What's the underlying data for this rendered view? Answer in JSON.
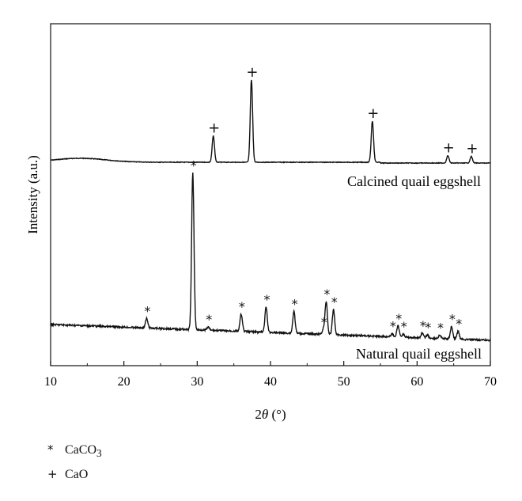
{
  "chart_data": {
    "type": "line",
    "xlabel_prefix": "2",
    "xlabel_theta": "θ",
    "xlabel_suffix": " (°)",
    "ylabel": "Intensity (a.u.)",
    "xlim": [
      10,
      70
    ],
    "x_ticks": [
      "10",
      "20",
      "30",
      "40",
      "50",
      "60",
      "70"
    ],
    "grid": false,
    "legend_position": "bottom-left below plot",
    "series": [
      {
        "name": "Calcined quail eggshell",
        "marker": "+",
        "peaks": [
          {
            "x": 32.2,
            "height": 32
          },
          {
            "x": 37.4,
            "height": 100
          },
          {
            "x": 53.9,
            "height": 50
          },
          {
            "x": 64.2,
            "height": 9
          },
          {
            "x": 67.4,
            "height": 8
          }
        ]
      },
      {
        "name": "Natural quail eggshell",
        "marker": "*",
        "peaks": [
          {
            "x": 23.1,
            "height": 6
          },
          {
            "x": 29.4,
            "height": 100
          },
          {
            "x": 31.5,
            "height": 2
          },
          {
            "x": 36.0,
            "height": 11
          },
          {
            "x": 39.4,
            "height": 16
          },
          {
            "x": 43.2,
            "height": 14
          },
          {
            "x": 47.2,
            "height": 3
          },
          {
            "x": 47.6,
            "height": 21
          },
          {
            "x": 48.6,
            "height": 16
          },
          {
            "x": 56.6,
            "height": 2
          },
          {
            "x": 57.4,
            "height": 7
          },
          {
            "x": 58.1,
            "height": 2
          },
          {
            "x": 60.7,
            "height": 3
          },
          {
            "x": 61.4,
            "height": 2
          },
          {
            "x": 63.1,
            "height": 2
          },
          {
            "x": 64.7,
            "height": 8
          },
          {
            "x": 65.6,
            "height": 5
          }
        ]
      }
    ],
    "legend": [
      {
        "symbol": "*",
        "label": "CaCO",
        "sub": "3"
      },
      {
        "symbol": "+",
        "label": "CaO",
        "sub": ""
      }
    ]
  }
}
